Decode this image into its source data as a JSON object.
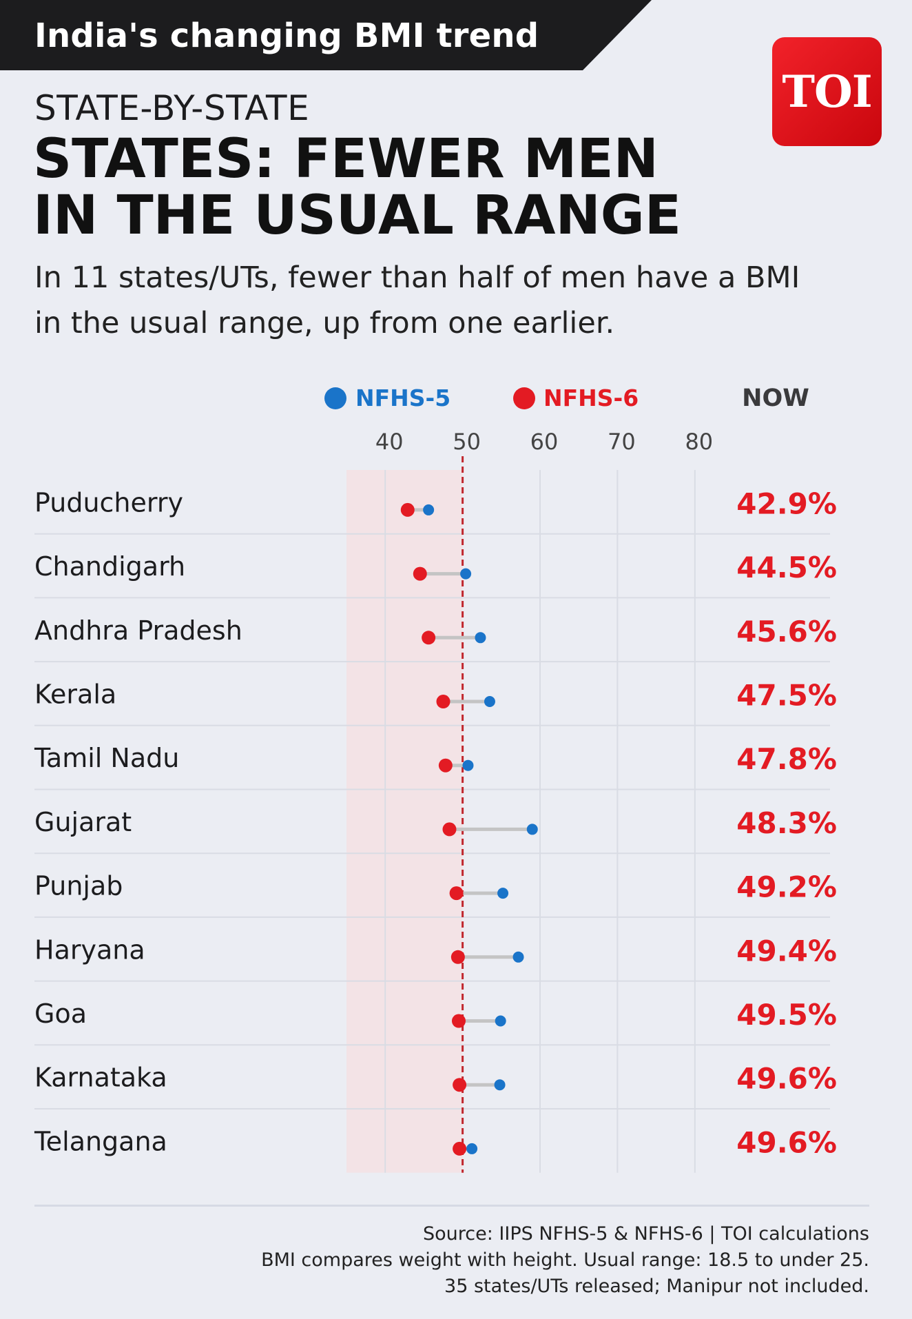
{
  "banner": {
    "title": "India's changing BMI trend"
  },
  "logo": {
    "text": "TOI"
  },
  "kicker": "STATE-BY-STATE",
  "headline": {
    "line1": "STATES: FEWER MEN",
    "line2": "IN THE USUAL RANGE"
  },
  "subhead": "In 11 states/UTs, fewer than half of men have a BMI in the usual range, up from one earlier.",
  "colors": {
    "nfhs5": "#1a74c9",
    "nfhs6": "#e31b23",
    "now_text": "#e31b23",
    "shade": "#f3e3e6",
    "connector": "#c4c4c4",
    "reference": "#c0282e"
  },
  "chart_data": {
    "type": "dumbbell",
    "legend": [
      "NFHS-5",
      "NFHS-6"
    ],
    "value_column_header": "NOW",
    "x_ticks": [
      40,
      50,
      60,
      70,
      80
    ],
    "xlim": [
      35,
      85
    ],
    "reference_line": 50,
    "shaded_range": [
      35,
      50
    ],
    "categories": [
      "Puducherry",
      "Chandigarh",
      "Andhra Pradesh",
      "Kerala",
      "Tamil Nadu",
      "Gujarat",
      "Punjab",
      "Haryana",
      "Goa",
      "Karnataka",
      "Telangana"
    ],
    "series": [
      {
        "name": "NFHS-5",
        "values": [
          45.6,
          50.4,
          52.3,
          53.5,
          50.7,
          59.0,
          55.2,
          57.2,
          54.9,
          54.8,
          51.2
        ]
      },
      {
        "name": "NFHS-6",
        "values": [
          42.9,
          44.5,
          45.6,
          47.5,
          47.8,
          48.3,
          49.2,
          49.4,
          49.5,
          49.6,
          49.6
        ]
      }
    ],
    "now_labels": [
      "42.9%",
      "44.5%",
      "45.6%",
      "47.5%",
      "47.8%",
      "48.3%",
      "49.2%",
      "49.4%",
      "49.5%",
      "49.6%",
      "49.6%"
    ]
  },
  "footer": {
    "line1": "Source: IIPS NFHS-5 & NFHS-6 | TOI calculations",
    "line2": "BMI compares weight with height. Usual range: 18.5 to under 25.",
    "line3": "35 states/UTs released; Manipur not included."
  }
}
